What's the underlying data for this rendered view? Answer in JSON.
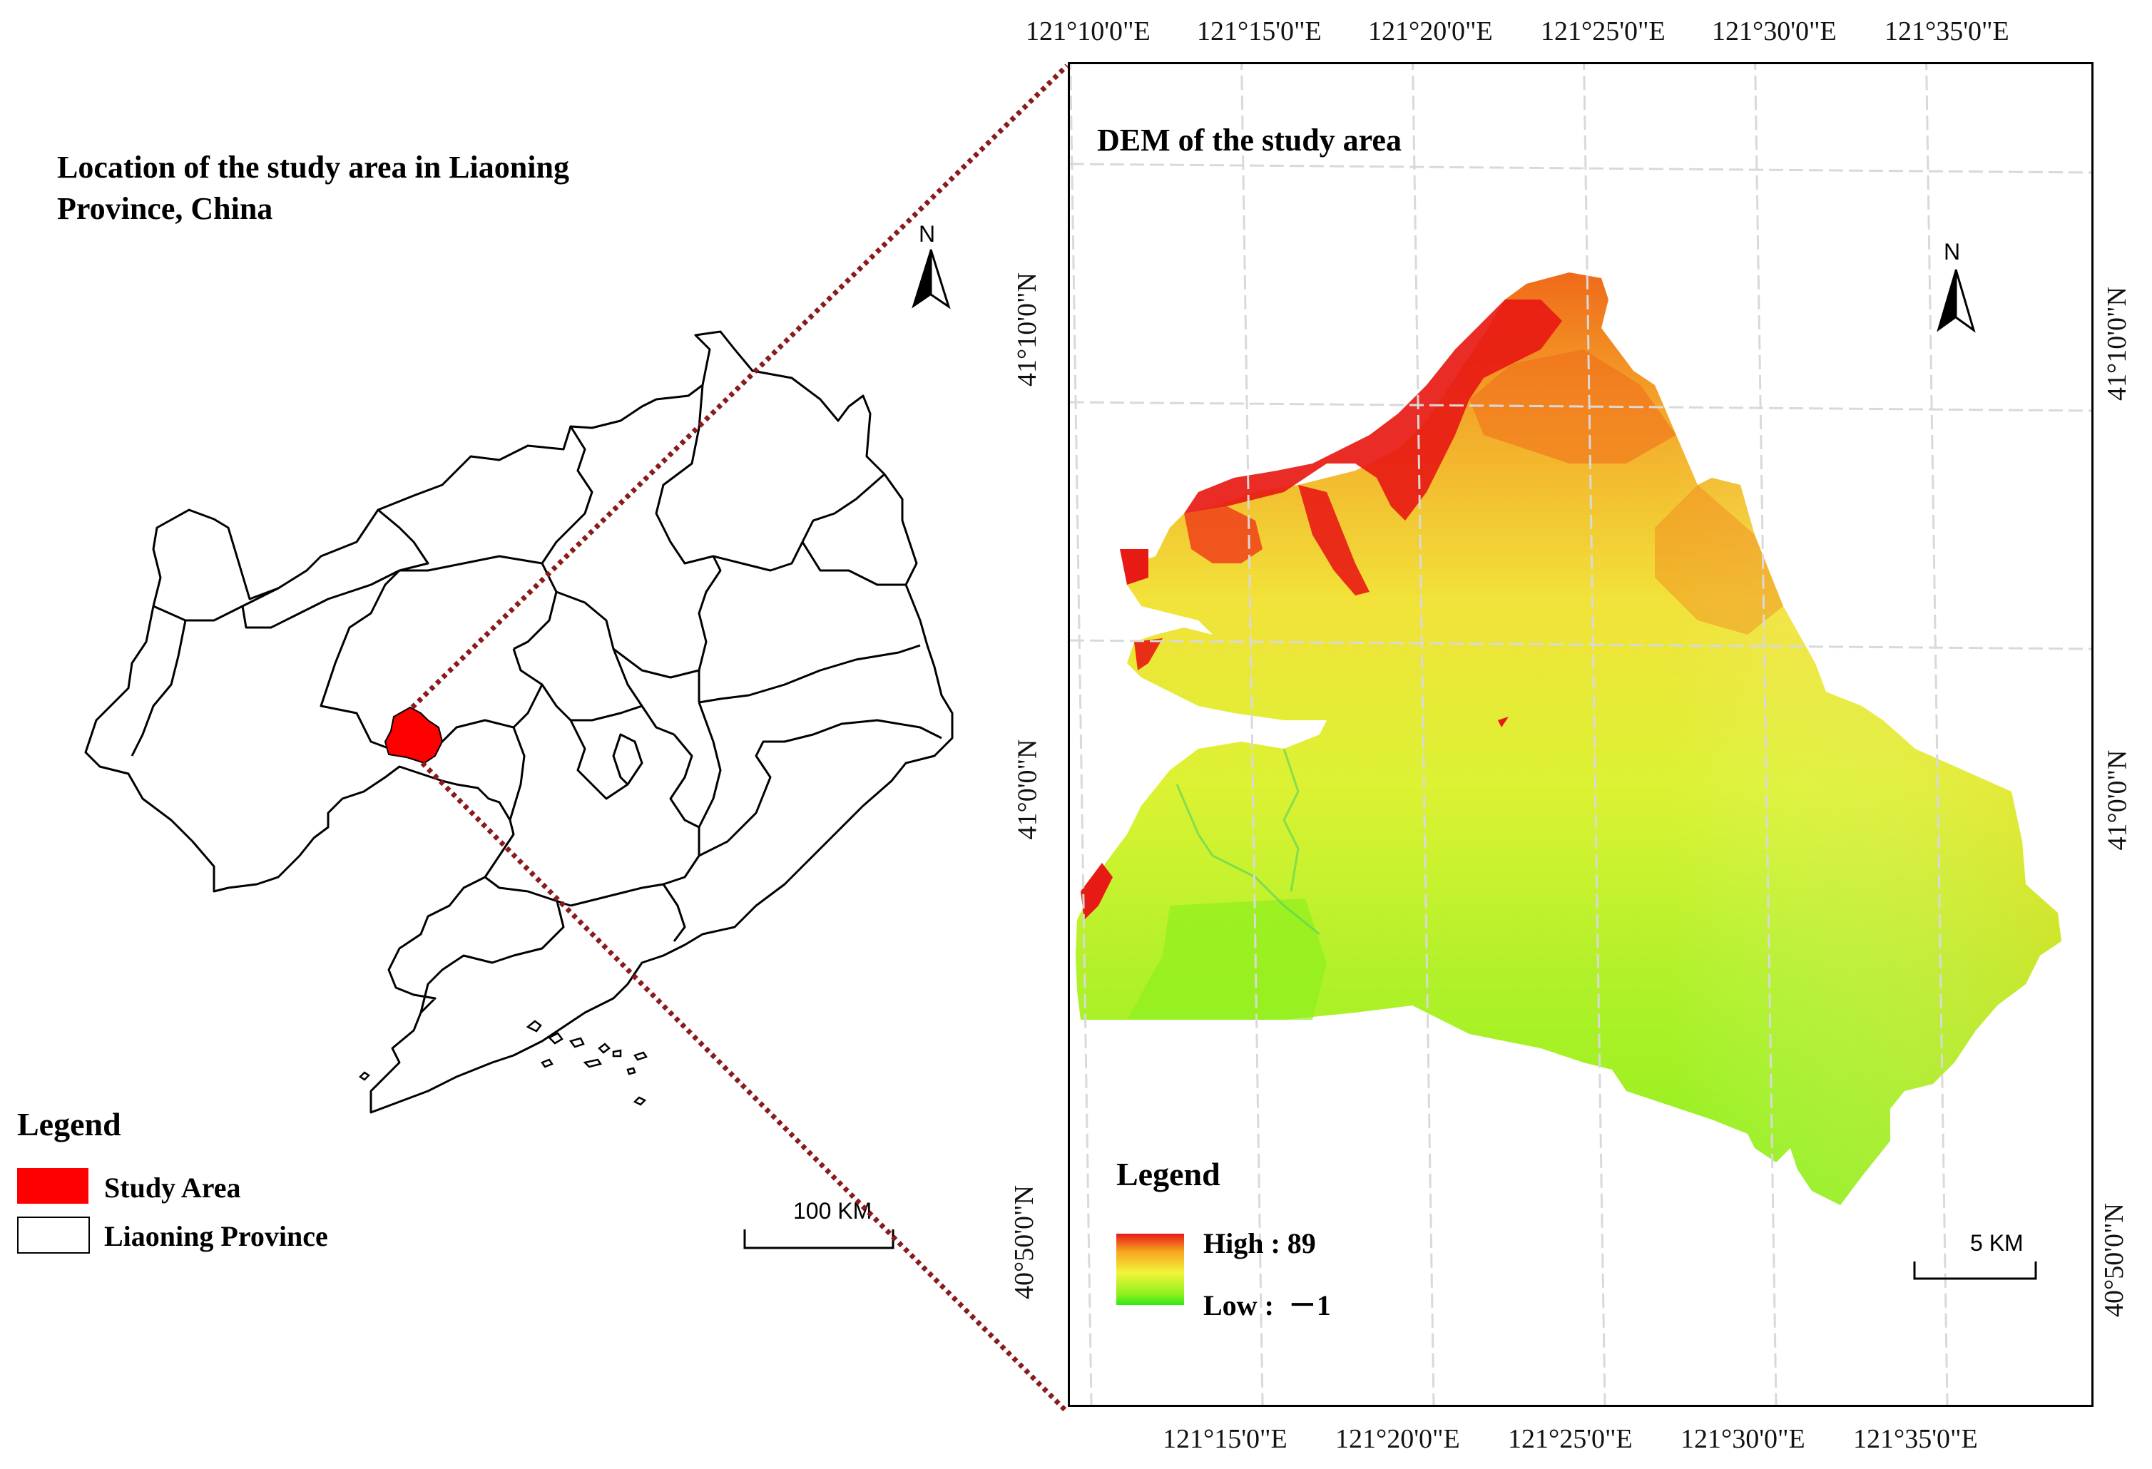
{
  "left_panel": {
    "title_line1": "Location of the study area in Liaoning",
    "title_line2": "Province, China",
    "north_label": "N",
    "legend": {
      "title": "Legend",
      "items": [
        {
          "label": "Study Area",
          "color": "#ff0000"
        },
        {
          "label": "Liaoning Province",
          "color": "#ffffff"
        }
      ]
    },
    "scale_label": "100 KM"
  },
  "right_panel": {
    "title": "DEM of the study area",
    "north_label": "N",
    "legend": {
      "title": "Legend",
      "high_label": "High : 89",
      "low_label": "Low :  －1",
      "ramp_colors": [
        "#e8181a",
        "#f7a51e",
        "#f3f43a",
        "#8ef01e",
        "#2fe818"
      ]
    },
    "scale_label": "5 KM",
    "top_ticks": [
      "121°10'0\"E",
      "121°15'0\"E",
      "121°20'0\"E",
      "121°25'0\"E",
      "121°30'0\"E",
      "121°35'0\"E"
    ],
    "bottom_ticks": [
      "121°15'0\"E",
      "121°20'0\"E",
      "121°25'0\"E",
      "121°30'0\"E",
      "121°35'0\"E"
    ],
    "left_ticks": [
      "41°10'0\"N",
      "41°0'0\"N",
      "40°50'0\"N"
    ],
    "right_ticks": [
      "41°10'0\"N",
      "41°0'0\"N",
      "40°50'0\"N"
    ]
  },
  "colors": {
    "study_area": "#ff0000",
    "connector": "#8b1a1a",
    "graticule": "#d9d9d9"
  }
}
